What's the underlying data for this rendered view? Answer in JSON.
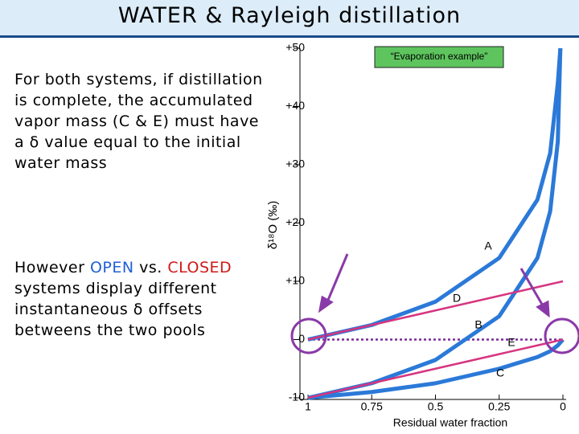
{
  "slide": {
    "title": "WATER & Rayleigh distillation",
    "paragraph_1": "For both systems, if distillation is complete, the accumulated vapor mass (C & E) must have a δ value equal to the initial water mass",
    "paragraph_2": [
      {
        "text": "However ",
        "color": "#000000"
      },
      {
        "text": "OPEN",
        "color": "#1f5fd6"
      },
      {
        "text": " vs. ",
        "color": "#000000"
      },
      {
        "text": "CLOSED",
        "color": "#d01818"
      },
      {
        "text": " systems display different instantaneous δ offsets betweens the two pools",
        "color": "#000000"
      }
    ]
  },
  "chart_data": {
    "type": "line",
    "annotation": "“Evaporation example”",
    "x_label": "Residual water fraction",
    "y_label": "δ¹⁸O (‰)",
    "x": [
      1,
      0.9,
      0.75,
      0.5,
      0.25,
      0.1,
      0.05,
      0.02,
      0.01,
      0
    ],
    "series": [
      {
        "name": "A",
        "color": "#2b79d8",
        "values": [
          0,
          1,
          2.5,
          6.5,
          14,
          24,
          32,
          44,
          50,
          null
        ]
      },
      {
        "name": "E",
        "color": "#2b79d8",
        "values": [
          -10,
          -9,
          -7.5,
          -3.5,
          4,
          14,
          22,
          34,
          50,
          null
        ]
      },
      {
        "name": "C",
        "color": "#2b79d8",
        "values": [
          -10,
          -9.6,
          -9,
          -7.5,
          -5,
          -3,
          -2,
          -1,
          -0.5,
          0
        ]
      },
      {
        "name": "D",
        "color": "#d6357f",
        "values": [
          0,
          1,
          2.5,
          5,
          7.5,
          9,
          9.5,
          9.8,
          9.9,
          10
        ]
      },
      {
        "name": "B",
        "color": "#d6357f",
        "values": [
          -10,
          -9,
          -7.5,
          -5,
          -2.5,
          -1,
          -0.5,
          -0.2,
          -0.1,
          0
        ]
      }
    ],
    "xlim": [
      1,
      0
    ],
    "xticks": [
      1,
      0.75,
      0.5,
      0.25,
      0
    ],
    "ylim": [
      -10,
      50
    ],
    "yticks": [
      -10,
      0,
      {
        "value": 10,
        "label": "+10"
      },
      {
        "value": 20,
        "label": "+20"
      },
      {
        "value": 30,
        "label": "+30"
      },
      {
        "value": 40,
        "label": "+40"
      },
      {
        "value": 50,
        "label": "+50"
      }
    ]
  }
}
